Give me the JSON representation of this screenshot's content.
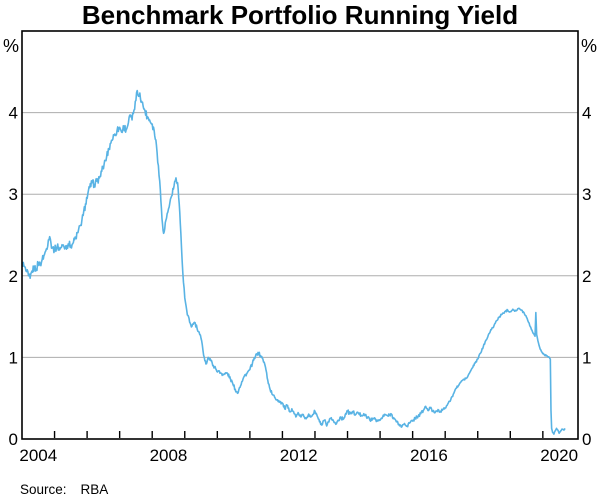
{
  "chart_data": {
    "type": "line",
    "title": "Benchmark Portfolio Running Yield",
    "unit_label": "%",
    "source": {
      "label": "Source:",
      "value": "RBA"
    },
    "x_axis": {
      "range": [
        2004,
        2021.08
      ],
      "tick_years": [
        2005,
        2006,
        2007,
        2008,
        2009,
        2010,
        2011,
        2012,
        2013,
        2014,
        2015,
        2016,
        2017,
        2018,
        2019,
        2020
      ],
      "labels": [
        "2004",
        "2008",
        "2012",
        "2016",
        "2020"
      ],
      "label_years": [
        2004,
        2008,
        2012,
        2016,
        2020
      ],
      "label_offset_years": 0.5
    },
    "y_axis": {
      "range": [
        0,
        5
      ],
      "tick_values": [
        0,
        1,
        2,
        3,
        4
      ],
      "tick_labels": [
        "0",
        "1",
        "2",
        "3",
        "4"
      ],
      "gridline_values": [
        1,
        2,
        3,
        4
      ]
    },
    "colors": {
      "line": "#59B3E4",
      "grid": "#ADADAD",
      "axis": "#000000"
    },
    "noise_segments": [
      {
        "until": 2008.2,
        "amp": 0.045
      },
      {
        "until": 2009.6,
        "amp": 0.03
      },
      {
        "until": 2016.9,
        "amp": 0.022
      },
      {
        "until": 2019.6,
        "amp": 0.012
      },
      {
        "until": 2021.1,
        "amp": 0.008
      }
    ],
    "series": [
      {
        "name": "Benchmark portfolio running yield",
        "points": [
          [
            2004.0,
            2.17
          ],
          [
            2004.06,
            2.12
          ],
          [
            2004.12,
            2.06
          ],
          [
            2004.2,
            2.0
          ],
          [
            2004.25,
            1.97
          ],
          [
            2004.31,
            2.06
          ],
          [
            2004.38,
            2.1
          ],
          [
            2004.44,
            2.08
          ],
          [
            2004.5,
            2.16
          ],
          [
            2004.56,
            2.14
          ],
          [
            2004.62,
            2.2
          ],
          [
            2004.69,
            2.26
          ],
          [
            2004.75,
            2.33
          ],
          [
            2004.81,
            2.44
          ],
          [
            2004.85,
            2.48
          ],
          [
            2004.89,
            2.4
          ],
          [
            2004.94,
            2.34
          ],
          [
            2005.0,
            2.32
          ],
          [
            2005.08,
            2.36
          ],
          [
            2005.17,
            2.33
          ],
          [
            2005.25,
            2.37
          ],
          [
            2005.33,
            2.35
          ],
          [
            2005.42,
            2.39
          ],
          [
            2005.5,
            2.37
          ],
          [
            2005.58,
            2.41
          ],
          [
            2005.65,
            2.47
          ],
          [
            2005.72,
            2.53
          ],
          [
            2005.8,
            2.62
          ],
          [
            2005.88,
            2.74
          ],
          [
            2005.95,
            2.88
          ],
          [
            2006.02,
            3.0
          ],
          [
            2006.08,
            3.08
          ],
          [
            2006.15,
            3.14
          ],
          [
            2006.22,
            3.12
          ],
          [
            2006.3,
            3.16
          ],
          [
            2006.38,
            3.2
          ],
          [
            2006.45,
            3.28
          ],
          [
            2006.52,
            3.36
          ],
          [
            2006.6,
            3.46
          ],
          [
            2006.67,
            3.56
          ],
          [
            2006.75,
            3.66
          ],
          [
            2006.83,
            3.72
          ],
          [
            2006.92,
            3.78
          ],
          [
            2007.0,
            3.82
          ],
          [
            2007.06,
            3.76
          ],
          [
            2007.13,
            3.83
          ],
          [
            2007.2,
            3.79
          ],
          [
            2007.27,
            3.88
          ],
          [
            2007.33,
            3.97
          ],
          [
            2007.38,
            3.91
          ],
          [
            2007.44,
            4.03
          ],
          [
            2007.5,
            4.15
          ],
          [
            2007.54,
            4.27
          ],
          [
            2007.58,
            4.2
          ],
          [
            2007.62,
            4.24
          ],
          [
            2007.67,
            4.14
          ],
          [
            2007.72,
            4.08
          ],
          [
            2007.78,
            4.02
          ],
          [
            2007.85,
            3.95
          ],
          [
            2007.92,
            3.91
          ],
          [
            2008.0,
            3.86
          ],
          [
            2008.06,
            3.78
          ],
          [
            2008.13,
            3.6
          ],
          [
            2008.19,
            3.35
          ],
          [
            2008.25,
            3.05
          ],
          [
            2008.3,
            2.7
          ],
          [
            2008.35,
            2.52
          ],
          [
            2008.42,
            2.68
          ],
          [
            2008.5,
            2.82
          ],
          [
            2008.58,
            2.96
          ],
          [
            2008.67,
            3.1
          ],
          [
            2008.73,
            3.2
          ],
          [
            2008.78,
            3.14
          ],
          [
            2008.83,
            2.88
          ],
          [
            2008.88,
            2.52
          ],
          [
            2008.92,
            2.18
          ],
          [
            2008.96,
            1.92
          ],
          [
            2009.0,
            1.73
          ],
          [
            2009.08,
            1.52
          ],
          [
            2009.15,
            1.43
          ],
          [
            2009.22,
            1.38
          ],
          [
            2009.3,
            1.43
          ],
          [
            2009.38,
            1.35
          ],
          [
            2009.46,
            1.28
          ],
          [
            2009.54,
            1.15
          ],
          [
            2009.6,
            1.0
          ],
          [
            2009.65,
            0.92
          ],
          [
            2009.72,
            1.0
          ],
          [
            2009.8,
            0.96
          ],
          [
            2009.88,
            0.9
          ],
          [
            2009.95,
            0.86
          ],
          [
            2010.02,
            0.83
          ],
          [
            2010.1,
            0.81
          ],
          [
            2010.2,
            0.79
          ],
          [
            2010.3,
            0.81
          ],
          [
            2010.4,
            0.74
          ],
          [
            2010.48,
            0.67
          ],
          [
            2010.55,
            0.61
          ],
          [
            2010.62,
            0.56
          ],
          [
            2010.68,
            0.63
          ],
          [
            2010.75,
            0.7
          ],
          [
            2010.83,
            0.77
          ],
          [
            2010.92,
            0.81
          ],
          [
            2011.0,
            0.85
          ],
          [
            2011.08,
            0.93
          ],
          [
            2011.17,
            1.01
          ],
          [
            2011.25,
            1.06
          ],
          [
            2011.33,
            1.02
          ],
          [
            2011.4,
            0.98
          ],
          [
            2011.48,
            0.88
          ],
          [
            2011.55,
            0.72
          ],
          [
            2011.62,
            0.61
          ],
          [
            2011.7,
            0.54
          ],
          [
            2011.78,
            0.5
          ],
          [
            2011.85,
            0.48
          ],
          [
            2011.92,
            0.46
          ],
          [
            2012.0,
            0.44
          ],
          [
            2012.07,
            0.37
          ],
          [
            2012.14,
            0.41
          ],
          [
            2012.21,
            0.34
          ],
          [
            2012.29,
            0.37
          ],
          [
            2012.36,
            0.31
          ],
          [
            2012.43,
            0.28
          ],
          [
            2012.5,
            0.31
          ],
          [
            2012.57,
            0.27
          ],
          [
            2012.64,
            0.3
          ],
          [
            2012.71,
            0.26
          ],
          [
            2012.79,
            0.29
          ],
          [
            2012.86,
            0.27
          ],
          [
            2012.93,
            0.3
          ],
          [
            2013.0,
            0.34
          ],
          [
            2013.07,
            0.28
          ],
          [
            2013.14,
            0.21
          ],
          [
            2013.21,
            0.17
          ],
          [
            2013.29,
            0.23
          ],
          [
            2013.36,
            0.16
          ],
          [
            2013.43,
            0.21
          ],
          [
            2013.5,
            0.26
          ],
          [
            2013.57,
            0.22
          ],
          [
            2013.64,
            0.18
          ],
          [
            2013.71,
            0.23
          ],
          [
            2013.79,
            0.27
          ],
          [
            2013.86,
            0.24
          ],
          [
            2013.93,
            0.3
          ],
          [
            2014.0,
            0.34
          ],
          [
            2014.08,
            0.31
          ],
          [
            2014.17,
            0.33
          ],
          [
            2014.25,
            0.3
          ],
          [
            2014.33,
            0.32
          ],
          [
            2014.42,
            0.29
          ],
          [
            2014.5,
            0.31
          ],
          [
            2014.58,
            0.27
          ],
          [
            2014.67,
            0.25
          ],
          [
            2014.75,
            0.23
          ],
          [
            2014.83,
            0.26
          ],
          [
            2014.92,
            0.22
          ],
          [
            2015.0,
            0.23
          ],
          [
            2015.08,
            0.27
          ],
          [
            2015.17,
            0.3
          ],
          [
            2015.25,
            0.28
          ],
          [
            2015.33,
            0.31
          ],
          [
            2015.42,
            0.26
          ],
          [
            2015.5,
            0.21
          ],
          [
            2015.58,
            0.18
          ],
          [
            2015.67,
            0.15
          ],
          [
            2015.75,
            0.19
          ],
          [
            2015.83,
            0.16
          ],
          [
            2015.92,
            0.2
          ],
          [
            2016.0,
            0.22
          ],
          [
            2016.08,
            0.26
          ],
          [
            2016.17,
            0.28
          ],
          [
            2016.25,
            0.31
          ],
          [
            2016.33,
            0.35
          ],
          [
            2016.4,
            0.4
          ],
          [
            2016.47,
            0.35
          ],
          [
            2016.54,
            0.38
          ],
          [
            2016.62,
            0.34
          ],
          [
            2016.7,
            0.33
          ],
          [
            2016.78,
            0.36
          ],
          [
            2016.86,
            0.34
          ],
          [
            2016.93,
            0.36
          ],
          [
            2017.0,
            0.38
          ],
          [
            2017.08,
            0.43
          ],
          [
            2017.17,
            0.48
          ],
          [
            2017.25,
            0.55
          ],
          [
            2017.33,
            0.62
          ],
          [
            2017.42,
            0.66
          ],
          [
            2017.5,
            0.71
          ],
          [
            2017.58,
            0.73
          ],
          [
            2017.67,
            0.75
          ],
          [
            2017.75,
            0.81
          ],
          [
            2017.83,
            0.87
          ],
          [
            2017.92,
            0.93
          ],
          [
            2018.0,
            0.98
          ],
          [
            2018.08,
            1.05
          ],
          [
            2018.17,
            1.13
          ],
          [
            2018.25,
            1.21
          ],
          [
            2018.33,
            1.28
          ],
          [
            2018.42,
            1.34
          ],
          [
            2018.5,
            1.39
          ],
          [
            2018.58,
            1.45
          ],
          [
            2018.67,
            1.5
          ],
          [
            2018.75,
            1.53
          ],
          [
            2018.83,
            1.56
          ],
          [
            2018.92,
            1.58
          ],
          [
            2019.0,
            1.56
          ],
          [
            2019.08,
            1.59
          ],
          [
            2019.17,
            1.57
          ],
          [
            2019.25,
            1.6
          ],
          [
            2019.33,
            1.58
          ],
          [
            2019.42,
            1.55
          ],
          [
            2019.5,
            1.49
          ],
          [
            2019.58,
            1.42
          ],
          [
            2019.65,
            1.34
          ],
          [
            2019.72,
            1.29
          ],
          [
            2019.76,
            1.26
          ],
          [
            2019.785,
            1.55
          ],
          [
            2019.81,
            1.28
          ],
          [
            2019.85,
            1.2
          ],
          [
            2019.92,
            1.1
          ],
          [
            2019.98,
            1.06
          ],
          [
            2020.05,
            1.03
          ],
          [
            2020.13,
            1.02
          ],
          [
            2020.2,
            1.0
          ],
          [
            2020.23,
            0.98
          ],
          [
            2020.25,
            0.35
          ],
          [
            2020.27,
            0.13
          ],
          [
            2020.3,
            0.08
          ],
          [
            2020.34,
            0.06
          ],
          [
            2020.38,
            0.1
          ],
          [
            2020.42,
            0.13
          ],
          [
            2020.46,
            0.11
          ],
          [
            2020.5,
            0.07
          ],
          [
            2020.55,
            0.1
          ],
          [
            2020.6,
            0.12
          ],
          [
            2020.64,
            0.11
          ],
          [
            2020.68,
            0.13
          ]
        ]
      }
    ]
  }
}
